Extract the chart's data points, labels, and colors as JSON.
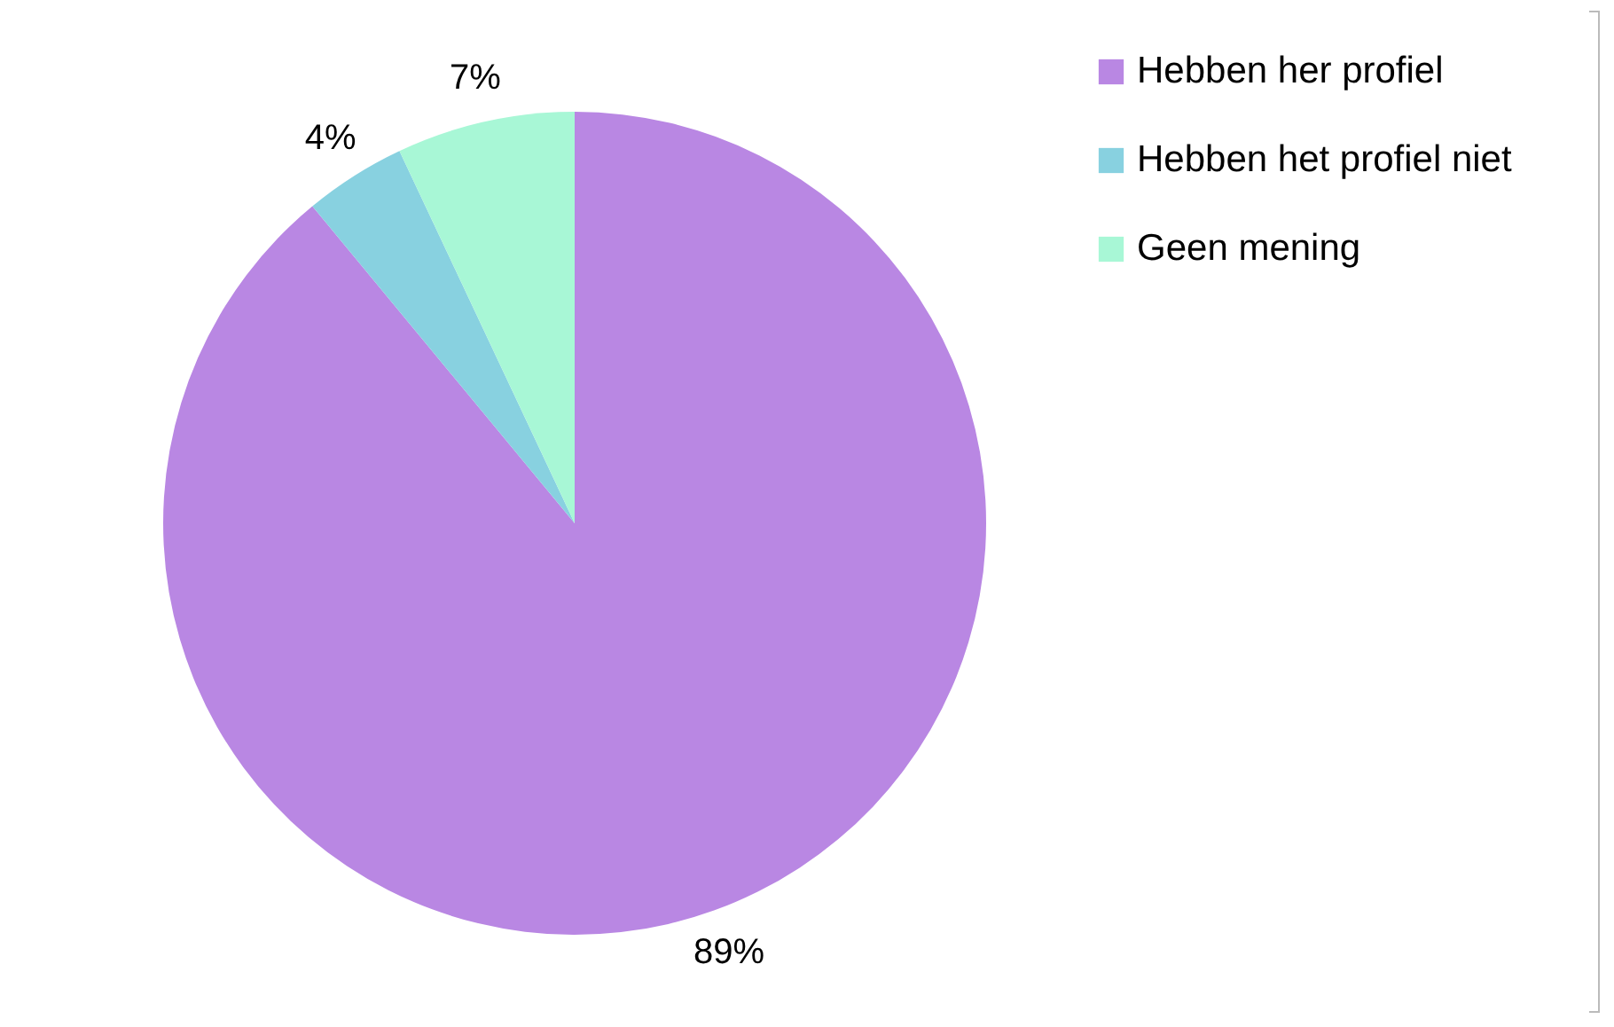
{
  "chart_data": {
    "type": "pie",
    "categories": [
      "Hebben her profiel",
      "Hebben het profiel niet",
      "Geen mening"
    ],
    "values": [
      89,
      4,
      7
    ],
    "colors": [
      "#b987e3",
      "#88d1e0",
      "#a8f7d6"
    ],
    "value_labels": [
      "89%",
      "4%",
      "7%"
    ],
    "legend": "right"
  }
}
